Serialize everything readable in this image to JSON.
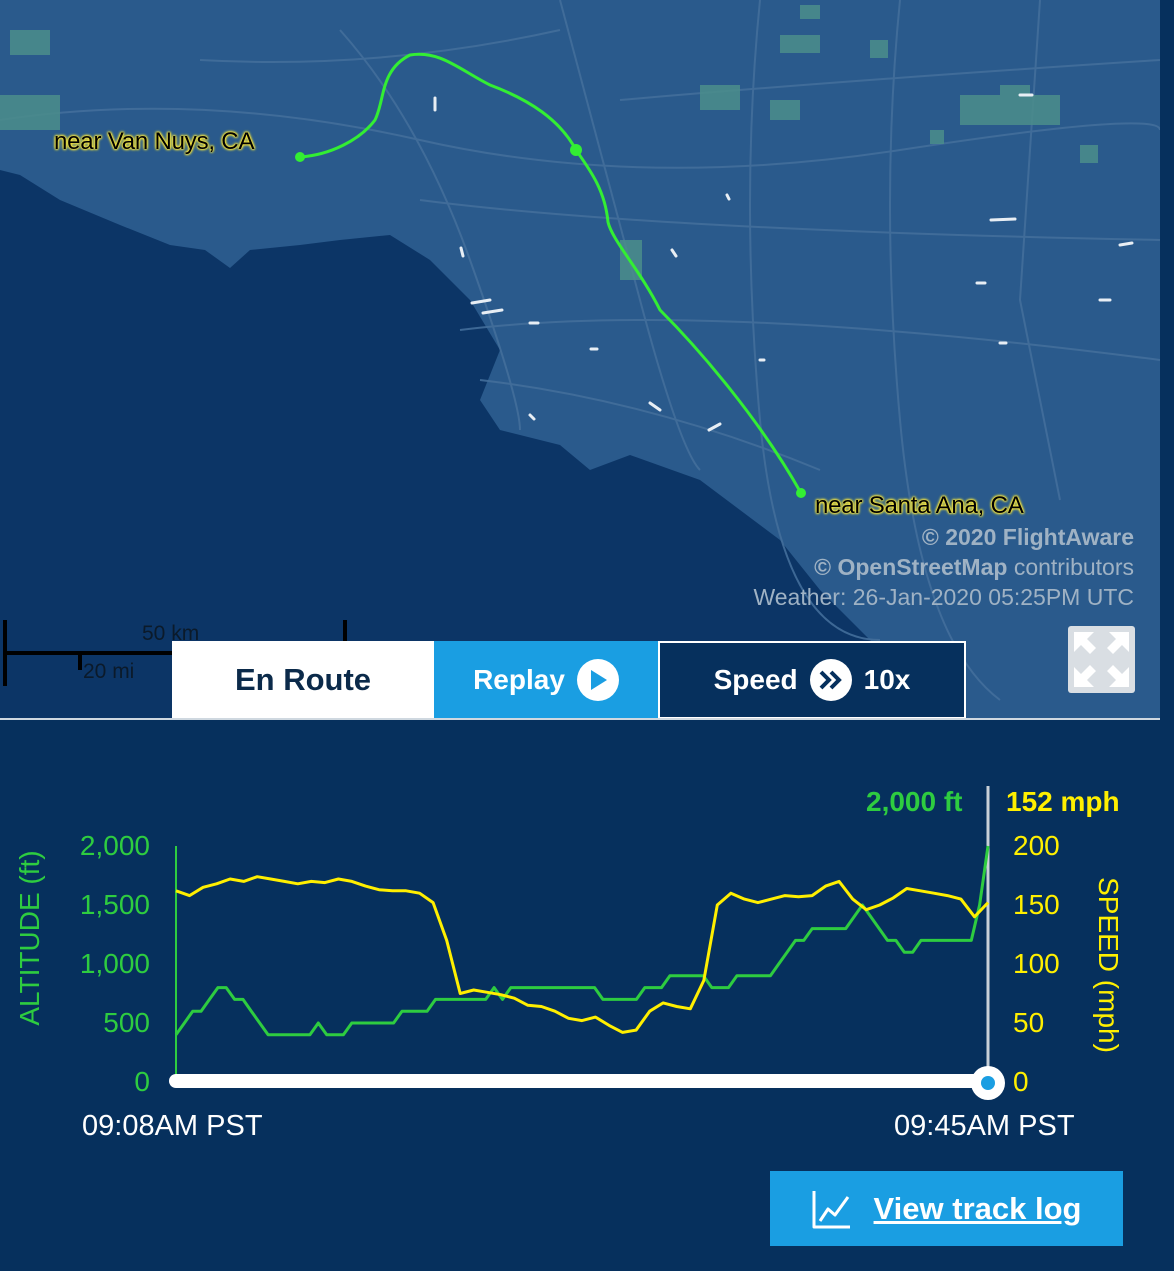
{
  "map": {
    "origin_label": "near Van Nuys, CA",
    "destination_label": "near Santa Ana, CA",
    "credit_flightaware": "© 2020 FlightAware",
    "credit_osm_brand": "© OpenStreetMap",
    "credit_osm_suffix": " contributors",
    "weather": "Weather: 26-Jan-2020 05:25PM UTC",
    "scale_km": "50 km",
    "scale_mi": "20 mi",
    "track_color": "#33ee33",
    "expand_icon": "expand-arrows-icon"
  },
  "controls": {
    "en_route_label": "En Route",
    "replay_label": "Replay",
    "replay_icon": "play-icon",
    "speed_label": "Speed",
    "speed_icon": "fast-forward-icon",
    "speed_value": "10x"
  },
  "chart_data": {
    "type": "line",
    "title": "",
    "x_start_label": "09:08AM PST",
    "x_end_label": "09:45AM PST",
    "y_left_label": "ALTITUDE (ft)",
    "y_right_label": "SPEED (mph)",
    "y_left_ticks": [
      "2,000",
      "1,500",
      "1,000",
      "500",
      "0"
    ],
    "y_right_ticks": [
      "200",
      "150",
      "100",
      "50",
      "0"
    ],
    "ylim_left": [
      0,
      2000
    ],
    "ylim_right": [
      0,
      200
    ],
    "current_altitude": "2,000 ft",
    "current_speed": "152 mph",
    "progress": 1.0,
    "series": [
      {
        "name": "ALTITUDE (ft)",
        "color": "#2ecc40",
        "axis": "left",
        "values": [
          400,
          500,
          600,
          600,
          700,
          800,
          800,
          700,
          700,
          600,
          500,
          400,
          400,
          400,
          400,
          400,
          400,
          500,
          400,
          400,
          400,
          500,
          500,
          500,
          500,
          500,
          500,
          600,
          600,
          600,
          600,
          700,
          700,
          700,
          700,
          700,
          700,
          700,
          800,
          700,
          800,
          800,
          800,
          800,
          800,
          800,
          800,
          800,
          800,
          800,
          800,
          700,
          700,
          700,
          700,
          700,
          800,
          800,
          800,
          900,
          900,
          900,
          900,
          900,
          800,
          800,
          800,
          900,
          900,
          900,
          900,
          900,
          1000,
          1100,
          1200,
          1200,
          1300,
          1300,
          1300,
          1300,
          1300,
          1400,
          1500,
          1400,
          1300,
          1200,
          1200,
          1100,
          1100,
          1200,
          1200,
          1200,
          1200,
          1200,
          1200,
          1200,
          1500,
          2000
        ]
      },
      {
        "name": "SPEED (mph)",
        "color": "#ffef00",
        "axis": "right",
        "values": [
          162,
          158,
          165,
          168,
          172,
          170,
          174,
          172,
          170,
          168,
          170,
          169,
          172,
          170,
          166,
          163,
          162,
          162,
          160,
          152,
          120,
          75,
          78,
          76,
          74,
          71,
          65,
          64,
          60,
          54,
          52,
          55,
          48,
          42,
          44,
          60,
          67,
          64,
          62,
          86,
          150,
          160,
          155,
          152,
          155,
          158,
          157,
          158,
          166,
          170,
          155,
          146,
          150,
          156,
          164,
          162,
          160,
          158,
          155,
          140,
          152
        ]
      }
    ]
  },
  "footer": {
    "track_log_label": "View track log",
    "track_log_icon": "line-chart-icon"
  }
}
